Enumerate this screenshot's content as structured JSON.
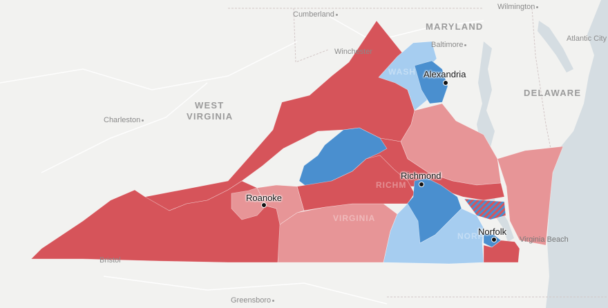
{
  "basemap": {
    "states": [
      "MARYLAND",
      "DELAWARE",
      "WEST",
      "VIRGINIA"
    ],
    "towns": [
      "Cumberland",
      "Wilmington",
      "Baltimore",
      "Atlantic City",
      "Winchester",
      "Charleston",
      "Bristol",
      "Greensboro",
      "Virginia Beach"
    ],
    "faded_labels": [
      "WASH",
      "RICHM",
      "VIRGINIA",
      "NORF"
    ]
  },
  "cities": [
    "Alexandria",
    "Richmond",
    "Roanoke",
    "Norfolk"
  ],
  "colors": {
    "strong_republican": "#d6545a",
    "lean_republican": "#e79597",
    "strong_democrat": "#4a8fcf",
    "lean_democrat": "#a6cdf0",
    "water": "#d5dde2",
    "land": "#f2f2f0"
  }
}
